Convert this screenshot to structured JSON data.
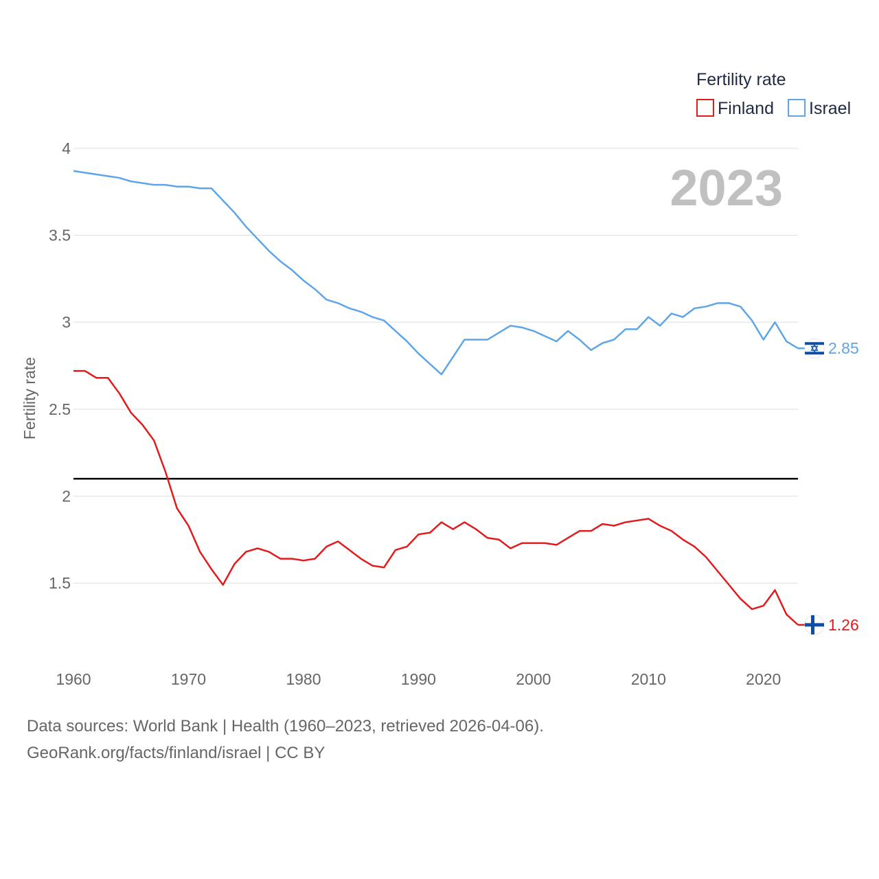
{
  "chart_data": {
    "type": "line",
    "title": "",
    "xlabel": "",
    "ylabel": "Fertility rate",
    "xlim": [
      1960,
      2023
    ],
    "ylim": [
      1.07,
      4.0
    ],
    "x_ticks": [
      1960,
      1970,
      1980,
      1990,
      2000,
      2010,
      2020
    ],
    "y_ticks": [
      1.5,
      2,
      2.5,
      3,
      3.5,
      4
    ],
    "y_tick_labels": [
      "1.5",
      "2",
      "2.5",
      "3",
      "3.5",
      "4"
    ],
    "legend": {
      "title": "Fertility rate",
      "position": "top-right"
    },
    "year_label": "2023",
    "reference_line": {
      "y": 2.1,
      "color": "#000000"
    },
    "x": [
      1960,
      1961,
      1962,
      1963,
      1964,
      1965,
      1966,
      1967,
      1968,
      1969,
      1970,
      1971,
      1972,
      1973,
      1974,
      1975,
      1976,
      1977,
      1978,
      1979,
      1980,
      1981,
      1982,
      1983,
      1984,
      1985,
      1986,
      1987,
      1988,
      1989,
      1990,
      1991,
      1992,
      1993,
      1994,
      1995,
      1996,
      1997,
      1998,
      1999,
      2000,
      2001,
      2002,
      2003,
      2004,
      2005,
      2006,
      2007,
      2008,
      2009,
      2010,
      2011,
      2012,
      2013,
      2014,
      2015,
      2016,
      2017,
      2018,
      2019,
      2020,
      2021,
      2022,
      2023
    ],
    "series": [
      {
        "name": "Finland",
        "color": "#e31a1c",
        "flag_icon": "finland-flag-icon",
        "end_value_label": "1.26",
        "values": [
          2.72,
          2.72,
          2.68,
          2.68,
          2.59,
          2.48,
          2.41,
          2.32,
          2.14,
          1.93,
          1.83,
          1.68,
          1.58,
          1.49,
          1.61,
          1.68,
          1.7,
          1.68,
          1.64,
          1.64,
          1.63,
          1.64,
          1.71,
          1.74,
          1.69,
          1.64,
          1.6,
          1.59,
          1.69,
          1.71,
          1.78,
          1.79,
          1.85,
          1.81,
          1.85,
          1.81,
          1.76,
          1.75,
          1.7,
          1.73,
          1.73,
          1.73,
          1.72,
          1.76,
          1.8,
          1.8,
          1.84,
          1.83,
          1.85,
          1.86,
          1.87,
          1.83,
          1.8,
          1.75,
          1.71,
          1.65,
          1.57,
          1.49,
          1.41,
          1.35,
          1.37,
          1.46,
          1.32,
          1.26
        ]
      },
      {
        "name": "Israel",
        "color": "#5da5e8",
        "flag_icon": "israel-flag-icon",
        "end_value_label": "2.85",
        "values": [
          3.87,
          3.86,
          3.85,
          3.84,
          3.83,
          3.81,
          3.8,
          3.79,
          3.79,
          3.78,
          3.78,
          3.77,
          3.77,
          3.7,
          3.63,
          3.55,
          3.48,
          3.41,
          3.35,
          3.3,
          3.24,
          3.19,
          3.13,
          3.11,
          3.08,
          3.06,
          3.03,
          3.01,
          2.95,
          2.89,
          2.82,
          2.76,
          2.7,
          2.8,
          2.9,
          2.9,
          2.9,
          2.94,
          2.98,
          2.97,
          2.95,
          2.92,
          2.89,
          2.95,
          2.9,
          2.84,
          2.88,
          2.9,
          2.96,
          2.96,
          3.03,
          2.98,
          3.05,
          3.03,
          3.08,
          3.09,
          3.11,
          3.11,
          3.09,
          3.01,
          2.9,
          3.0,
          2.89,
          2.85
        ]
      }
    ]
  },
  "footer": {
    "line1": "Data sources: World Bank | Health (1960–2023, retrieved 2026-04-06).",
    "line2": "GeoRank.org/facts/finland/israel | CC BY"
  }
}
